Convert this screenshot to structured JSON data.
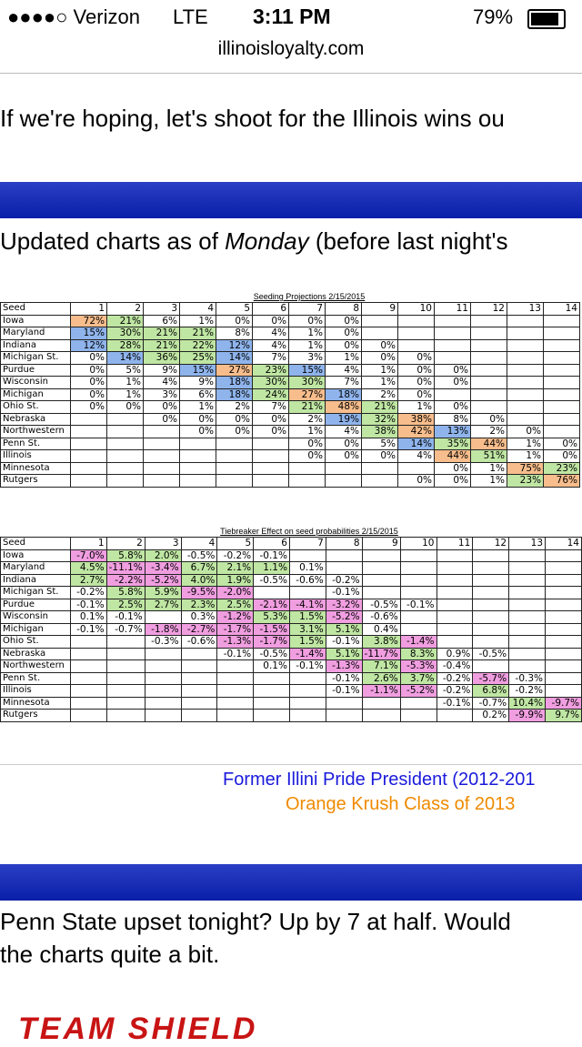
{
  "status": {
    "carrier": "●●●●○ Verizon",
    "network": "LTE",
    "time": "3:11 PM",
    "battery": "79%"
  },
  "url": "illinoisloyalty.com",
  "post1": "If we're hoping, let's shoot for the Illinois wins ou",
  "post2": {
    "before": "Updated charts as of ",
    "em": "Monday",
    "after": " (before last night's"
  },
  "colors": {
    "o": "#f7bd8c",
    "b": "#8fb4ec",
    "g": "#bfe6a3",
    "p": "#f09ee0"
  },
  "tables": [
    {
      "title": "Seeding Projections 2/15/2015",
      "corner": "Seed",
      "headers": [
        "1",
        "2",
        "3",
        "4",
        "5",
        "6",
        "7",
        "8",
        "9",
        "10",
        "11",
        "12",
        "13",
        "14"
      ],
      "rows": [
        {
          "name": "Iowa",
          "cells": [
            "72%",
            "21%",
            "6%",
            "1%",
            "0%",
            "0%",
            "0%",
            "0%",
            null,
            null,
            null,
            null,
            null,
            null
          ],
          "shade": [
            "o",
            "g",
            null,
            null,
            null,
            null,
            null,
            null,
            null,
            null,
            null,
            null,
            null,
            null
          ]
        },
        {
          "name": "Maryland",
          "cells": [
            "15%",
            "30%",
            "21%",
            "21%",
            "8%",
            "4%",
            "1%",
            "0%",
            null,
            null,
            null,
            null,
            null,
            null
          ],
          "shade": [
            "b",
            "g",
            "g",
            "g",
            null,
            null,
            null,
            null,
            null,
            null,
            null,
            null,
            null,
            null
          ]
        },
        {
          "name": "Indiana",
          "cells": [
            "12%",
            "28%",
            "21%",
            "22%",
            "12%",
            "4%",
            "1%",
            "0%",
            "0%",
            null,
            null,
            null,
            null,
            null
          ],
          "shade": [
            "b",
            "g",
            "g",
            "g",
            "b",
            null,
            null,
            null,
            null,
            null,
            null,
            null,
            null,
            null
          ]
        },
        {
          "name": "Michigan St.",
          "cells": [
            "0%",
            "14%",
            "36%",
            "25%",
            "14%",
            "7%",
            "3%",
            "1%",
            "0%",
            "0%",
            null,
            null,
            null,
            null
          ],
          "shade": [
            null,
            "b",
            "g",
            "g",
            "b",
            null,
            null,
            null,
            null,
            null,
            null,
            null,
            null,
            null
          ]
        },
        {
          "name": "Purdue",
          "cells": [
            "0%",
            "5%",
            "9%",
            "15%",
            "27%",
            "23%",
            "15%",
            "4%",
            "1%",
            "0%",
            "0%",
            null,
            null,
            null
          ],
          "shade": [
            null,
            null,
            null,
            "b",
            "o",
            "g",
            "b",
            null,
            null,
            null,
            null,
            null,
            null,
            null
          ]
        },
        {
          "name": "Wisconsin",
          "cells": [
            "0%",
            "1%",
            "4%",
            "9%",
            "18%",
            "30%",
            "30%",
            "7%",
            "1%",
            "0%",
            "0%",
            null,
            null,
            null
          ],
          "shade": [
            null,
            null,
            null,
            null,
            "b",
            "g",
            "g",
            null,
            null,
            null,
            null,
            null,
            null,
            null
          ]
        },
        {
          "name": "Michigan",
          "cells": [
            "0%",
            "1%",
            "3%",
            "6%",
            "18%",
            "24%",
            "27%",
            "18%",
            "2%",
            "0%",
            null,
            null,
            null,
            null
          ],
          "shade": [
            null,
            null,
            null,
            null,
            "b",
            "g",
            "o",
            "b",
            null,
            null,
            null,
            null,
            null,
            null
          ]
        },
        {
          "name": "Ohio St.",
          "cells": [
            "0%",
            "0%",
            "0%",
            "1%",
            "2%",
            "7%",
            "21%",
            "48%",
            "21%",
            "1%",
            "0%",
            null,
            null,
            null
          ],
          "shade": [
            null,
            null,
            null,
            null,
            null,
            null,
            "g",
            "o",
            "g",
            null,
            null,
            null,
            null,
            null
          ]
        },
        {
          "name": "Nebraska",
          "cells": [
            null,
            null,
            "0%",
            "0%",
            "0%",
            "0%",
            "2%",
            "19%",
            "32%",
            "38%",
            "8%",
            "0%",
            null,
            null
          ],
          "shade": [
            null,
            null,
            null,
            null,
            null,
            null,
            null,
            "b",
            "g",
            "o",
            null,
            null,
            null,
            null
          ]
        },
        {
          "name": "Northwestern",
          "cells": [
            null,
            null,
            null,
            "0%",
            "0%",
            "0%",
            "1%",
            "4%",
            "38%",
            "42%",
            "13%",
            "2%",
            "0%",
            null
          ],
          "shade": [
            null,
            null,
            null,
            null,
            null,
            null,
            null,
            null,
            "g",
            "o",
            "b",
            null,
            null,
            null
          ]
        },
        {
          "name": "Penn St.",
          "cells": [
            null,
            null,
            null,
            null,
            null,
            null,
            "0%",
            "0%",
            "5%",
            "14%",
            "35%",
            "44%",
            "1%",
            "0%"
          ],
          "shade": [
            null,
            null,
            null,
            null,
            null,
            null,
            null,
            null,
            null,
            "b",
            "g",
            "o",
            null,
            null
          ]
        },
        {
          "name": "Illinois",
          "cells": [
            null,
            null,
            null,
            null,
            null,
            null,
            "0%",
            "0%",
            "0%",
            "4%",
            "44%",
            "51%",
            "1%",
            "0%"
          ],
          "shade": [
            null,
            null,
            null,
            null,
            null,
            null,
            null,
            null,
            null,
            null,
            "o",
            "g",
            null,
            null
          ]
        },
        {
          "name": "Minnesota",
          "cells": [
            null,
            null,
            null,
            null,
            null,
            null,
            null,
            null,
            null,
            null,
            "0%",
            "1%",
            "75%",
            "23%"
          ],
          "shade": [
            null,
            null,
            null,
            null,
            null,
            null,
            null,
            null,
            null,
            null,
            null,
            null,
            "o",
            "g"
          ]
        },
        {
          "name": "Rutgers",
          "cells": [
            null,
            null,
            null,
            null,
            null,
            null,
            null,
            null,
            null,
            "0%",
            "0%",
            "1%",
            "23%",
            "76%"
          ],
          "shade": [
            null,
            null,
            null,
            null,
            null,
            null,
            null,
            null,
            null,
            null,
            null,
            null,
            "g",
            "o"
          ]
        }
      ]
    },
    {
      "title": "Tiebreaker Effect on seed probabilities 2/15/2015",
      "corner": "Seed",
      "headers": [
        "1",
        "2",
        "3",
        "4",
        "5",
        "6",
        "7",
        "8",
        "9",
        "10",
        "11",
        "12",
        "13",
        "14"
      ],
      "rows": [
        {
          "name": "Iowa",
          "cells": [
            "-7.0%",
            "5.8%",
            "2.0%",
            "-0.5%",
            "-0.2%",
            "-0.1%",
            null,
            null,
            null,
            null,
            null,
            null,
            null,
            null
          ],
          "shade": [
            "p",
            "g",
            "g",
            null,
            null,
            null,
            null,
            null,
            null,
            null,
            null,
            null,
            null,
            null
          ]
        },
        {
          "name": "Maryland",
          "cells": [
            "4.5%",
            "-11.1%",
            "-3.4%",
            "6.7%",
            "2.1%",
            "1.1%",
            "0.1%",
            null,
            null,
            null,
            null,
            null,
            null,
            null
          ],
          "shade": [
            "g",
            "p",
            "p",
            "g",
            "g",
            "g",
            null,
            null,
            null,
            null,
            null,
            null,
            null,
            null
          ]
        },
        {
          "name": "Indiana",
          "cells": [
            "2.7%",
            "-2.2%",
            "-5.2%",
            "4.0%",
            "1.9%",
            "-0.5%",
            "-0.6%",
            "-0.2%",
            null,
            null,
            null,
            null,
            null,
            null
          ],
          "shade": [
            "g",
            "p",
            "p",
            "g",
            "g",
            null,
            null,
            null,
            null,
            null,
            null,
            null,
            null,
            null
          ]
        },
        {
          "name": "Michigan St.",
          "cells": [
            "-0.2%",
            "5.8%",
            "5.9%",
            "-9.5%",
            "-2.0%",
            null,
            null,
            "-0.1%",
            null,
            null,
            null,
            null,
            null,
            null
          ],
          "shade": [
            null,
            "g",
            "g",
            "p",
            "p",
            null,
            null,
            null,
            null,
            null,
            null,
            null,
            null,
            null
          ]
        },
        {
          "name": "Purdue",
          "cells": [
            "-0.1%",
            "2.5%",
            "2.7%",
            "2.3%",
            "2.5%",
            "-2.1%",
            "-4.1%",
            "-3.2%",
            "-0.5%",
            "-0.1%",
            null,
            null,
            null,
            null
          ],
          "shade": [
            null,
            "g",
            "g",
            "g",
            "g",
            "p",
            "p",
            "p",
            null,
            null,
            null,
            null,
            null,
            null
          ]
        },
        {
          "name": "Wisconsin",
          "cells": [
            "0.1%",
            "-0.1%",
            null,
            "0.3%",
            "-1.2%",
            "5.3%",
            "1.5%",
            "-5.2%",
            "-0.6%",
            null,
            null,
            null,
            null,
            null
          ],
          "shade": [
            null,
            null,
            null,
            null,
            "p",
            "g",
            "g",
            "p",
            null,
            null,
            null,
            null,
            null,
            null
          ]
        },
        {
          "name": "Michigan",
          "cells": [
            "-0.1%",
            "-0.7%",
            "-1.8%",
            "-2.7%",
            "-1.7%",
            "-1.5%",
            "3.1%",
            "5.1%",
            "0.4%",
            null,
            null,
            null,
            null,
            null
          ],
          "shade": [
            null,
            null,
            "p",
            "p",
            "p",
            "p",
            "g",
            "g",
            null,
            null,
            null,
            null,
            null,
            null
          ]
        },
        {
          "name": "Ohio St.",
          "cells": [
            null,
            null,
            "-0.3%",
            "-0.6%",
            "-1.3%",
            "-1.7%",
            "1.5%",
            "-0.1%",
            "3.8%",
            "-1.4%",
            null,
            null,
            null,
            null
          ],
          "shade": [
            null,
            null,
            null,
            null,
            "p",
            "p",
            "g",
            null,
            "g",
            "p",
            null,
            null,
            null,
            null
          ]
        },
        {
          "name": "Nebraska",
          "cells": [
            null,
            null,
            null,
            null,
            "-0.1%",
            "-0.5%",
            "-1.4%",
            "5.1%",
            "-11.7%",
            "8.3%",
            "0.9%",
            "-0.5%",
            null,
            null
          ],
          "shade": [
            null,
            null,
            null,
            null,
            null,
            null,
            "p",
            "g",
            "p",
            "g",
            null,
            null,
            null,
            null
          ]
        },
        {
          "name": "Northwestern",
          "cells": [
            null,
            null,
            null,
            null,
            null,
            "0.1%",
            "-0.1%",
            "-1.3%",
            "7.1%",
            "-5.3%",
            "-0.4%",
            null,
            null,
            null
          ],
          "shade": [
            null,
            null,
            null,
            null,
            null,
            null,
            null,
            "p",
            "g",
            "p",
            null,
            null,
            null,
            null
          ]
        },
        {
          "name": "Penn St.",
          "cells": [
            null,
            null,
            null,
            null,
            null,
            null,
            null,
            "-0.1%",
            "2.6%",
            "3.7%",
            "-0.2%",
            "-5.7%",
            "-0.3%",
            null
          ],
          "shade": [
            null,
            null,
            null,
            null,
            null,
            null,
            null,
            null,
            "g",
            "g",
            null,
            "p",
            null,
            null
          ]
        },
        {
          "name": "Illinois",
          "cells": [
            null,
            null,
            null,
            null,
            null,
            null,
            null,
            "-0.1%",
            "-1.1%",
            "-5.2%",
            "-0.2%",
            "6.8%",
            "-0.2%",
            null
          ],
          "shade": [
            null,
            null,
            null,
            null,
            null,
            null,
            null,
            null,
            "p",
            "p",
            null,
            "g",
            null,
            null
          ]
        },
        {
          "name": "Minnesota",
          "cells": [
            null,
            null,
            null,
            null,
            null,
            null,
            null,
            null,
            null,
            null,
            "-0.1%",
            "-0.7%",
            "10.4%",
            "-9.7%"
          ],
          "shade": [
            null,
            null,
            null,
            null,
            null,
            null,
            null,
            null,
            null,
            null,
            null,
            null,
            "g",
            "p"
          ]
        },
        {
          "name": "Rutgers",
          "cells": [
            null,
            null,
            null,
            null,
            null,
            null,
            null,
            null,
            null,
            null,
            null,
            "0.2%",
            "-9.9%",
            "9.7%"
          ],
          "shade": [
            null,
            null,
            null,
            null,
            null,
            null,
            null,
            null,
            null,
            null,
            null,
            null,
            "p",
            "g"
          ]
        }
      ]
    }
  ],
  "signature": [
    "Former Illini Pride President (2012-201",
    "Orange Krush Class of 2013"
  ],
  "post3": [
    "Penn State upset tonight? Up by 7 at half. Would",
    "the charts quite a bit."
  ],
  "logo": "TEAM SHIELD"
}
